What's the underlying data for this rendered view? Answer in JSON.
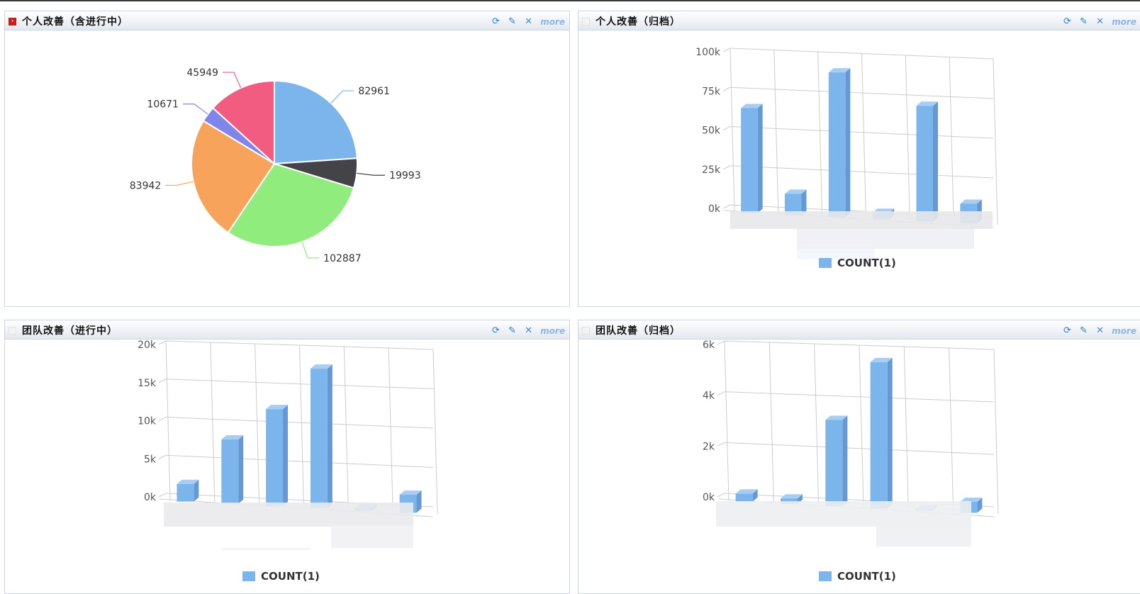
{
  "panels": {
    "p1": {
      "title": "个人改善（含进行中）",
      "more": "more",
      "chart_data": {
        "type": "pie",
        "slices": [
          {
            "label": "82961",
            "value": 82961,
            "color": "#7cb5ec"
          },
          {
            "label": "19993",
            "value": 19993,
            "color": "#434348"
          },
          {
            "label": "102887",
            "value": 102887,
            "color": "#90ed7d"
          },
          {
            "label": "83942",
            "value": 83942,
            "color": "#f7a35c"
          },
          {
            "label": "10671",
            "value": 10671,
            "color": "#8085e9"
          },
          {
            "label": "45949",
            "value": 45949,
            "color": "#f15c80"
          }
        ]
      }
    },
    "p2": {
      "title": "个人改善（归档）",
      "more": "more",
      "chart_data": {
        "type": "bar",
        "series": [
          {
            "name": "COUNT(1)",
            "values": [
              64000,
              13000,
              88000,
              4000,
              70000,
              12000
            ]
          }
        ],
        "yticks": [
          "0k",
          "25k",
          "50k",
          "75k",
          "100k"
        ],
        "ylim": [
          0,
          100000
        ],
        "color": "#7cb5ec"
      }
    },
    "p3": {
      "title": "团队改善（进行中）",
      "more": "more",
      "chart_data": {
        "type": "bar",
        "series": [
          {
            "name": "COUNT(1)",
            "values": [
              2200,
              8000,
              12000,
              17200,
              300,
              2200
            ]
          }
        ],
        "yticks": [
          "0k",
          "5k",
          "10k",
          "15k",
          "20k"
        ],
        "ylim": [
          0,
          20000
        ],
        "color": "#7cb5ec"
      }
    },
    "p4": {
      "title": "团队改善（归档）",
      "more": "more",
      "chart_data": {
        "type": "bar",
        "series": [
          {
            "name": "COUNT(1)",
            "values": [
              300,
              200,
              3200,
              5400,
              50,
              400
            ]
          }
        ],
        "yticks": [
          "0k",
          "2k",
          "4k",
          "6k"
        ],
        "ylim": [
          0,
          6000
        ],
        "color": "#7cb5ec"
      }
    }
  }
}
